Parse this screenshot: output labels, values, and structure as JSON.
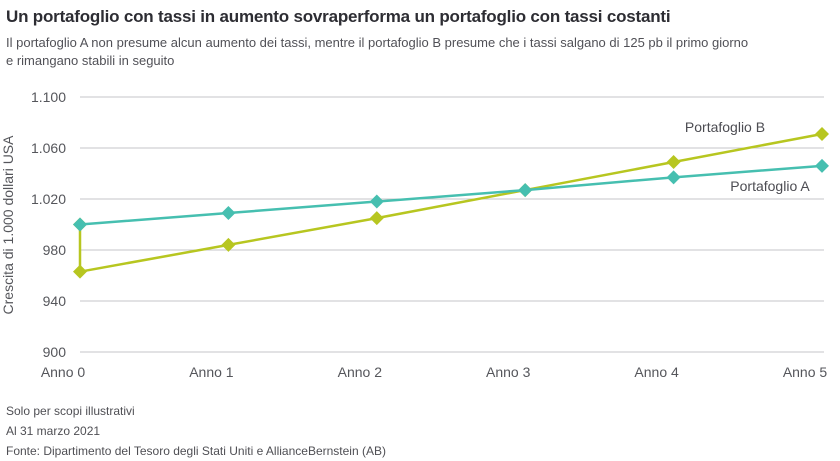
{
  "header": {
    "title": "Un portafoglio con tassi in aumento sovraperforma un portafoglio con tassi costanti",
    "subtitle_line1": "Il portafoglio A non presume alcun aumento dei tassi, mentre il portafoglio B presume che i tassi salgano di 125 pb il primo giorno",
    "subtitle_line2": "e rimangano stabili in seguito"
  },
  "chart_data": {
    "type": "line",
    "title": "",
    "xlabel": "",
    "ylabel": "Crescita di 1.000 dollari USA",
    "categories": [
      "Anno 0",
      "Anno 1",
      "Anno 2",
      "Anno 3",
      "Anno 4",
      "Anno 5"
    ],
    "ylim": [
      900,
      1100
    ],
    "grid": true,
    "legend_position": "inline-labels",
    "y_ticks": [
      {
        "value": 1100,
        "label": "1.100"
      },
      {
        "value": 1060,
        "label": "1.060"
      },
      {
        "value": 1020,
        "label": "1.020"
      },
      {
        "value": 980,
        "label": "980"
      },
      {
        "value": 940,
        "label": "940"
      },
      {
        "value": 900,
        "label": "900"
      }
    ],
    "series": [
      {
        "name": "Portafoglio B",
        "color": "#b7c620",
        "x": [
          0,
          0,
          1,
          2,
          3,
          4,
          5
        ],
        "values": [
          1000,
          963,
          984,
          1005,
          1027,
          1049,
          1071
        ]
      },
      {
        "name": "Portafoglio A",
        "color": "#46bfb0",
        "x": [
          0,
          1,
          2,
          3,
          4,
          5
        ],
        "values": [
          1000,
          1009,
          1018,
          1027,
          1037,
          1046
        ]
      }
    ]
  },
  "footer": {
    "disclaimer": "Solo per scopi illustrativi",
    "as_of_date": "Al 31 marzo 2021",
    "source": "Fonte: Dipartimento del Tesoro degli Stati Uniti e AllianceBernstein (AB)"
  },
  "colors": {
    "title_text": "#2d2d33",
    "body_text": "#515157",
    "gridline": "#c6c6c8",
    "portfolio_a": "#46bfb0",
    "portfolio_b": "#b7c620"
  }
}
